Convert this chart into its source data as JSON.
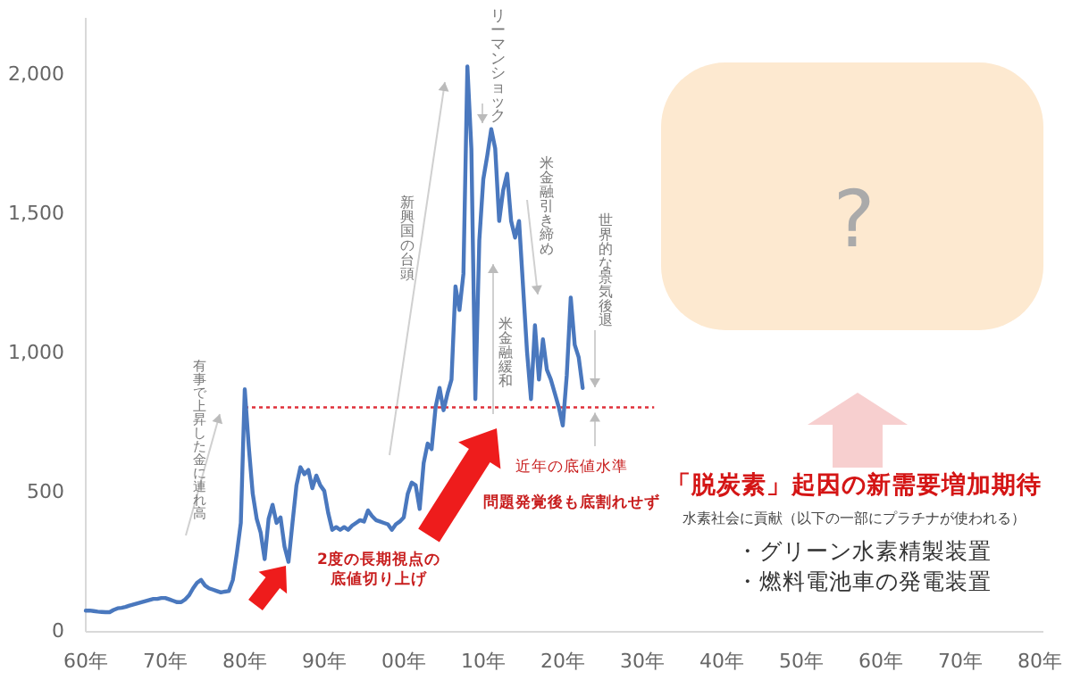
{
  "chart_data": {
    "type": "line",
    "categories": [
      "60年",
      null,
      null,
      null,
      null,
      null,
      null,
      null,
      null,
      null,
      null,
      null,
      null,
      null,
      null,
      null,
      null,
      null,
      null,
      null,
      "70年",
      null,
      null,
      null,
      null,
      null,
      null,
      null,
      null,
      null,
      null,
      null,
      null,
      null,
      null,
      null,
      null,
      null,
      null,
      null,
      "80年",
      null,
      null,
      null,
      null,
      null,
      null,
      null,
      null,
      null,
      null,
      null,
      null,
      null,
      null,
      null,
      null,
      null,
      null,
      null,
      "90年",
      null,
      null,
      null,
      null,
      null,
      null,
      null,
      null,
      null,
      null,
      null,
      null,
      null,
      null,
      null,
      null,
      null,
      null,
      null,
      "00年",
      null,
      null,
      null,
      null,
      null,
      null,
      null,
      null,
      null,
      null,
      null,
      null,
      null,
      null,
      null,
      null,
      null,
      null,
      null,
      "10年",
      null,
      null,
      null,
      null,
      null,
      null,
      null,
      null,
      null,
      null,
      null,
      null,
      null,
      null,
      null,
      null,
      null,
      null,
      null,
      "20年",
      null,
      null,
      null,
      null,
      null,
      null,
      null,
      null,
      null,
      null,
      null,
      null,
      null,
      null,
      null,
      null,
      null,
      null,
      null,
      "30年",
      null,
      null,
      null,
      null,
      null,
      null,
      null,
      null,
      null,
      null,
      null,
      null,
      null,
      null,
      null,
      null,
      null,
      null,
      null,
      "40年",
      null,
      null,
      null,
      null,
      null,
      null,
      null,
      null,
      null,
      null,
      null,
      null,
      null,
      null,
      null,
      null,
      null,
      null,
      null,
      "50年",
      null,
      null,
      null,
      null,
      null,
      null,
      null,
      null,
      null,
      null,
      null,
      null,
      null,
      null,
      null,
      null,
      null,
      null,
      null,
      "60年",
      null,
      null,
      null,
      null,
      null,
      null,
      null,
      null,
      null,
      null,
      null,
      null,
      null,
      null,
      null,
      null,
      null,
      null,
      null,
      "70年",
      null,
      null,
      null,
      null,
      null,
      null,
      null,
      null,
      null,
      null,
      null,
      null,
      null,
      null,
      null,
      null,
      null,
      null,
      null,
      "80年"
    ],
    "series": [
      {
        "color": "#4a78be",
        "values": [
          70,
          70,
          68,
          66,
          65,
          64,
          64,
          72,
          78,
          80,
          83,
          88,
          92,
          96,
          100,
          104,
          108,
          112,
          112,
          115,
          115,
          110,
          105,
          100,
          100,
          110,
          125,
          150,
          170,
          180,
          160,
          150,
          145,
          140,
          135,
          138,
          140,
          180,
          275,
          385,
          865,
          660,
          490,
          400,
          350,
          255,
          400,
          450,
          385,
          405,
          300,
          245,
          385,
          520,
          585,
          560,
          575,
          510,
          555,
          520,
          500,
          420,
          360,
          370,
          360,
          370,
          360,
          375,
          385,
          395,
          390,
          430,
          410,
          395,
          390,
          385,
          380,
          360,
          380,
          390,
          405,
          490,
          530,
          520,
          435,
          600,
          670,
          650,
          800,
          870,
          790,
          850,
          900,
          1235,
          1150,
          1280,
          2025,
          1730,
          830,
          1400,
          1620,
          1705,
          1800,
          1730,
          1470,
          1580,
          1640,
          1470,
          1410,
          1470,
          1235,
          1000,
          830,
          1095,
          900,
          1045,
          935,
          900,
          850,
          800,
          735,
          915,
          1195,
          1025,
          980,
          870,
          null,
          null,
          null,
          null,
          null,
          null,
          null,
          null,
          null,
          null,
          null,
          null,
          null,
          null,
          null,
          null,
          null,
          null,
          null,
          null,
          null,
          null,
          null,
          null,
          null,
          null,
          null,
          null,
          null,
          null,
          null,
          null,
          null,
          null,
          null,
          null,
          null,
          null,
          null,
          null,
          null,
          null,
          null,
          null,
          null,
          null,
          null,
          null,
          null,
          null,
          null,
          null,
          null,
          null,
          null,
          null,
          null,
          null,
          null,
          null,
          null,
          null,
          null,
          null,
          null,
          null,
          null,
          null,
          null,
          null,
          null,
          null,
          null,
          null,
          null,
          null,
          null,
          null,
          null,
          null,
          null,
          null,
          null,
          null,
          null,
          null,
          null,
          null,
          null,
          null,
          null,
          null,
          null,
          null,
          null,
          null,
          null,
          null,
          null,
          null,
          null,
          null,
          null,
          null,
          null,
          null,
          null,
          null,
          null,
          null,
          null,
          null,
          null,
          null,
          null
        ]
      }
    ],
    "ylim": [
      0,
      2200
    ],
    "yticks": [
      0,
      500,
      {
        "value": 1000,
        "label": "1,000"
      },
      {
        "value": 1500,
        "label": "1,500"
      },
      {
        "value": 2000,
        "label": "2,000"
      }
    ],
    "ref_lines": [
      {
        "axis": "y",
        "value": 800,
        "label": "近年の底値水準",
        "color": "#e0303a",
        "line_style": "dotted"
      }
    ],
    "annotations": [
      "有事で上昇した金に連れ高",
      "新興国の台頭",
      "リーマンショック",
      "米金融緩和",
      "米金融引き締め",
      "世界的な景気後退",
      "2度の長期視点の底値切り上げ",
      "問題発覚後も底割れせず",
      "?",
      "「脱炭素」起因の新需要増加期待",
      "水素社会に貢献（以下の一部にプラチナが使われる）",
      "・グリーン水素精製装置",
      "・燃料電池車の発電装置"
    ]
  }
}
